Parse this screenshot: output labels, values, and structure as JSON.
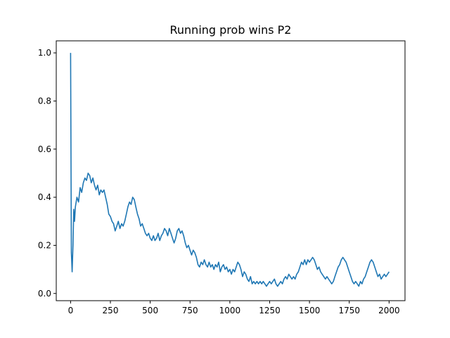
{
  "chart_data": {
    "type": "line",
    "title": "Running prob wins P2",
    "xlabel": "",
    "ylabel": "",
    "xlim": [
      -90,
      2100
    ],
    "ylim": [
      -0.03,
      1.05
    ],
    "grid": false,
    "x_ticks": [
      0,
      250,
      500,
      750,
      1000,
      1250,
      1500,
      1750,
      2000
    ],
    "x_tick_labels": [
      "0",
      "250",
      "500",
      "750",
      "1000",
      "1250",
      "1500",
      "1750",
      "2000"
    ],
    "y_ticks": [
      0.0,
      0.2,
      0.4,
      0.6,
      0.8,
      1.0
    ],
    "y_tick_labels": [
      "0.0",
      "0.2",
      "0.4",
      "0.6",
      "0.8",
      "1.0"
    ],
    "series": [
      {
        "color": "#1f77b4",
        "x": [
          0,
          5,
          10,
          15,
          20,
          25,
          30,
          40,
          50,
          60,
          70,
          80,
          90,
          100,
          110,
          120,
          130,
          140,
          150,
          160,
          170,
          180,
          190,
          200,
          210,
          220,
          230,
          240,
          250,
          260,
          270,
          280,
          290,
          300,
          310,
          320,
          330,
          340,
          350,
          360,
          370,
          380,
          390,
          400,
          410,
          420,
          430,
          440,
          450,
          460,
          470,
          480,
          490,
          500,
          510,
          520,
          530,
          540,
          550,
          560,
          570,
          580,
          590,
          600,
          610,
          620,
          630,
          640,
          650,
          660,
          670,
          680,
          690,
          700,
          710,
          720,
          730,
          740,
          750,
          760,
          770,
          780,
          790,
          800,
          810,
          820,
          830,
          840,
          850,
          860,
          870,
          880,
          890,
          900,
          910,
          920,
          930,
          940,
          950,
          960,
          970,
          980,
          990,
          1000,
          1010,
          1020,
          1030,
          1040,
          1050,
          1060,
          1070,
          1080,
          1090,
          1100,
          1110,
          1120,
          1130,
          1140,
          1150,
          1160,
          1170,
          1180,
          1190,
          1200,
          1210,
          1220,
          1230,
          1240,
          1250,
          1260,
          1270,
          1280,
          1290,
          1300,
          1310,
          1320,
          1330,
          1340,
          1350,
          1360,
          1370,
          1380,
          1390,
          1400,
          1410,
          1420,
          1430,
          1440,
          1450,
          1460,
          1470,
          1480,
          1490,
          1500,
          1510,
          1520,
          1530,
          1540,
          1550,
          1560,
          1570,
          1580,
          1590,
          1600,
          1610,
          1620,
          1630,
          1640,
          1650,
          1660,
          1670,
          1680,
          1690,
          1700,
          1710,
          1720,
          1730,
          1740,
          1750,
          1760,
          1770,
          1780,
          1790,
          1800,
          1810,
          1820,
          1830,
          1840,
          1850,
          1860,
          1870,
          1880,
          1890,
          1900,
          1910,
          1920,
          1930,
          1940,
          1950,
          1960,
          1970,
          1980,
          1990,
          2000
        ],
        "y": [
          1.0,
          0.17,
          0.09,
          0.2,
          0.35,
          0.3,
          0.36,
          0.4,
          0.38,
          0.44,
          0.42,
          0.46,
          0.48,
          0.47,
          0.5,
          0.49,
          0.46,
          0.48,
          0.45,
          0.43,
          0.45,
          0.41,
          0.43,
          0.42,
          0.43,
          0.4,
          0.37,
          0.33,
          0.32,
          0.3,
          0.29,
          0.26,
          0.28,
          0.3,
          0.27,
          0.29,
          0.28,
          0.3,
          0.33,
          0.36,
          0.38,
          0.37,
          0.4,
          0.39,
          0.36,
          0.33,
          0.31,
          0.28,
          0.29,
          0.27,
          0.25,
          0.24,
          0.25,
          0.23,
          0.22,
          0.24,
          0.22,
          0.23,
          0.25,
          0.22,
          0.24,
          0.25,
          0.27,
          0.26,
          0.24,
          0.27,
          0.25,
          0.23,
          0.21,
          0.23,
          0.26,
          0.27,
          0.25,
          0.26,
          0.24,
          0.21,
          0.19,
          0.2,
          0.18,
          0.16,
          0.18,
          0.17,
          0.15,
          0.12,
          0.11,
          0.13,
          0.12,
          0.14,
          0.12,
          0.11,
          0.13,
          0.11,
          0.12,
          0.1,
          0.12,
          0.11,
          0.13,
          0.09,
          0.11,
          0.12,
          0.1,
          0.11,
          0.09,
          0.1,
          0.08,
          0.1,
          0.09,
          0.11,
          0.13,
          0.12,
          0.1,
          0.07,
          0.09,
          0.08,
          0.06,
          0.05,
          0.07,
          0.04,
          0.05,
          0.04,
          0.05,
          0.04,
          0.05,
          0.04,
          0.05,
          0.04,
          0.03,
          0.04,
          0.05,
          0.04,
          0.05,
          0.06,
          0.04,
          0.03,
          0.04,
          0.05,
          0.04,
          0.06,
          0.07,
          0.06,
          0.08,
          0.07,
          0.06,
          0.07,
          0.06,
          0.08,
          0.09,
          0.11,
          0.13,
          0.12,
          0.14,
          0.12,
          0.14,
          0.13,
          0.14,
          0.15,
          0.14,
          0.12,
          0.1,
          0.11,
          0.09,
          0.08,
          0.07,
          0.06,
          0.07,
          0.06,
          0.05,
          0.04,
          0.05,
          0.07,
          0.09,
          0.11,
          0.12,
          0.14,
          0.15,
          0.14,
          0.13,
          0.11,
          0.09,
          0.07,
          0.05,
          0.04,
          0.05,
          0.04,
          0.03,
          0.05,
          0.04,
          0.06,
          0.07,
          0.09,
          0.11,
          0.13,
          0.14,
          0.13,
          0.11,
          0.09,
          0.07,
          0.08,
          0.06,
          0.07,
          0.08,
          0.07,
          0.08,
          0.09
        ]
      }
    ]
  }
}
